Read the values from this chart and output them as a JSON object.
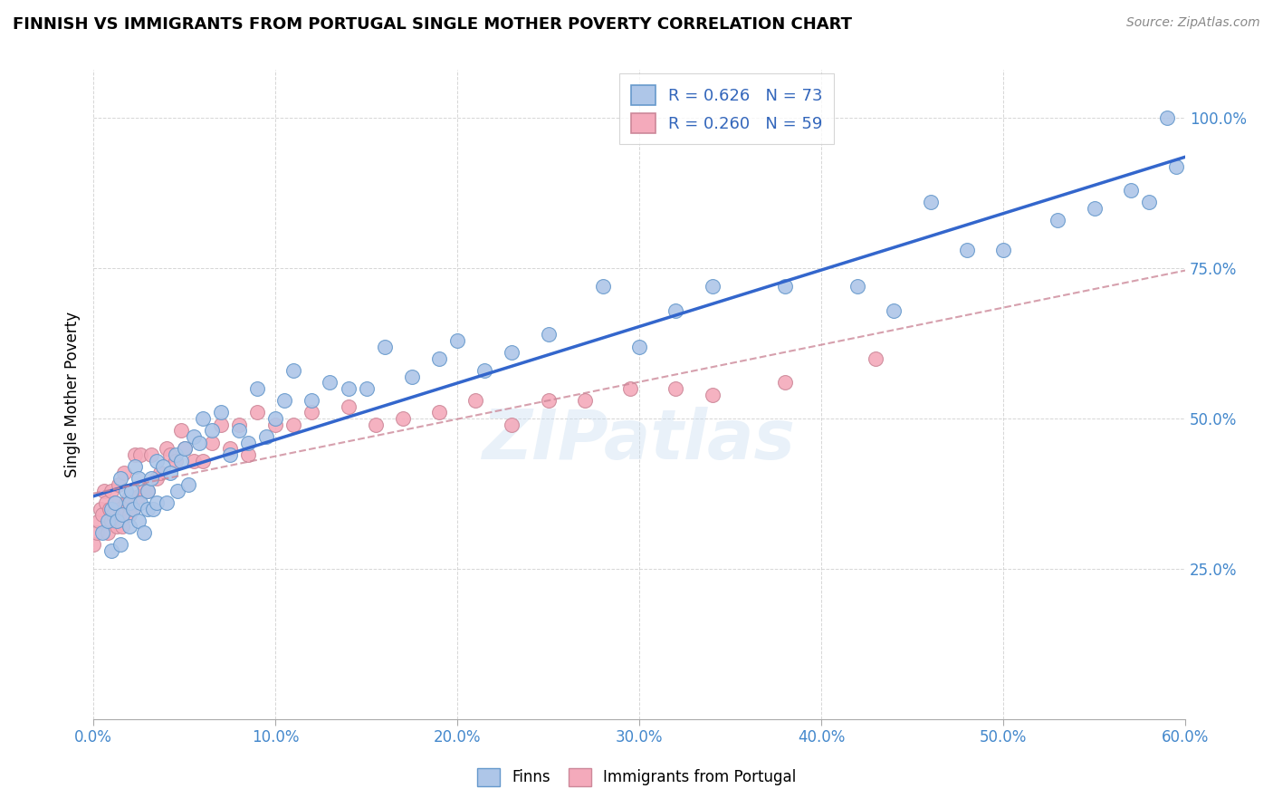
{
  "title": "FINNISH VS IMMIGRANTS FROM PORTUGAL SINGLE MOTHER POVERTY CORRELATION CHART",
  "source": "Source: ZipAtlas.com",
  "ylabel": "Single Mother Poverty",
  "xlim": [
    0.0,
    0.6
  ],
  "ylim": [
    0.0,
    1.08
  ],
  "xtick_values": [
    0.0,
    0.1,
    0.2,
    0.3,
    0.4,
    0.5,
    0.6
  ],
  "xtick_labels": [
    "0.0%",
    "10.0%",
    "20.0%",
    "30.0%",
    "40.0%",
    "50.0%",
    "60.0%"
  ],
  "ytick_values": [
    0.25,
    0.5,
    0.75,
    1.0
  ],
  "ytick_labels": [
    "25.0%",
    "50.0%",
    "75.0%",
    "100.0%"
  ],
  "R_finns": 0.626,
  "N_finns": 73,
  "R_portugal": 0.26,
  "N_portugal": 59,
  "scatter_color_finns": "#aec6e8",
  "scatter_edge_finns": "#6699cc",
  "scatter_color_portugal": "#f4aabb",
  "scatter_edge_portugal": "#cc8899",
  "line_color_finns": "#3366cc",
  "line_color_portugal": "#cc8899",
  "watermark": "ZIPatlas",
  "legend_finns": "Finns",
  "legend_portugal": "Immigrants from Portugal",
  "finns_x": [
    0.005,
    0.008,
    0.01,
    0.01,
    0.012,
    0.013,
    0.015,
    0.015,
    0.016,
    0.018,
    0.02,
    0.02,
    0.021,
    0.022,
    0.023,
    0.025,
    0.025,
    0.026,
    0.028,
    0.03,
    0.03,
    0.032,
    0.033,
    0.035,
    0.035,
    0.038,
    0.04,
    0.042,
    0.045,
    0.046,
    0.048,
    0.05,
    0.052,
    0.055,
    0.058,
    0.06,
    0.065,
    0.07,
    0.075,
    0.08,
    0.085,
    0.09,
    0.095,
    0.1,
    0.105,
    0.11,
    0.12,
    0.13,
    0.14,
    0.15,
    0.16,
    0.175,
    0.19,
    0.2,
    0.215,
    0.23,
    0.25,
    0.28,
    0.3,
    0.32,
    0.34,
    0.38,
    0.42,
    0.44,
    0.46,
    0.48,
    0.5,
    0.53,
    0.55,
    0.57,
    0.58,
    0.59,
    0.595
  ],
  "finns_y": [
    0.31,
    0.33,
    0.28,
    0.35,
    0.36,
    0.33,
    0.29,
    0.4,
    0.34,
    0.38,
    0.32,
    0.36,
    0.38,
    0.35,
    0.42,
    0.33,
    0.4,
    0.36,
    0.31,
    0.35,
    0.38,
    0.4,
    0.35,
    0.36,
    0.43,
    0.42,
    0.36,
    0.41,
    0.44,
    0.38,
    0.43,
    0.45,
    0.39,
    0.47,
    0.46,
    0.5,
    0.48,
    0.51,
    0.44,
    0.48,
    0.46,
    0.55,
    0.47,
    0.5,
    0.53,
    0.58,
    0.53,
    0.56,
    0.55,
    0.55,
    0.62,
    0.57,
    0.6,
    0.63,
    0.58,
    0.61,
    0.64,
    0.72,
    0.62,
    0.68,
    0.72,
    0.72,
    0.72,
    0.68,
    0.86,
    0.78,
    0.78,
    0.83,
    0.85,
    0.88,
    0.86,
    1.0,
    0.92
  ],
  "portugal_x": [
    0.0,
    0.002,
    0.003,
    0.004,
    0.005,
    0.006,
    0.007,
    0.008,
    0.009,
    0.01,
    0.01,
    0.011,
    0.012,
    0.013,
    0.014,
    0.015,
    0.016,
    0.017,
    0.018,
    0.02,
    0.02,
    0.022,
    0.023,
    0.025,
    0.026,
    0.028,
    0.03,
    0.032,
    0.035,
    0.037,
    0.04,
    0.042,
    0.045,
    0.048,
    0.05,
    0.055,
    0.06,
    0.065,
    0.07,
    0.075,
    0.08,
    0.085,
    0.09,
    0.1,
    0.11,
    0.12,
    0.14,
    0.155,
    0.17,
    0.19,
    0.21,
    0.23,
    0.25,
    0.27,
    0.295,
    0.32,
    0.34,
    0.38,
    0.43
  ],
  "portugal_y": [
    0.29,
    0.31,
    0.33,
    0.35,
    0.34,
    0.38,
    0.36,
    0.31,
    0.35,
    0.33,
    0.38,
    0.34,
    0.36,
    0.32,
    0.39,
    0.35,
    0.32,
    0.41,
    0.36,
    0.34,
    0.37,
    0.35,
    0.44,
    0.37,
    0.44,
    0.38,
    0.38,
    0.44,
    0.4,
    0.41,
    0.45,
    0.44,
    0.43,
    0.48,
    0.45,
    0.43,
    0.43,
    0.46,
    0.49,
    0.45,
    0.49,
    0.44,
    0.51,
    0.49,
    0.49,
    0.51,
    0.52,
    0.49,
    0.5,
    0.51,
    0.53,
    0.49,
    0.53,
    0.53,
    0.55,
    0.55,
    0.54,
    0.56,
    0.6
  ]
}
